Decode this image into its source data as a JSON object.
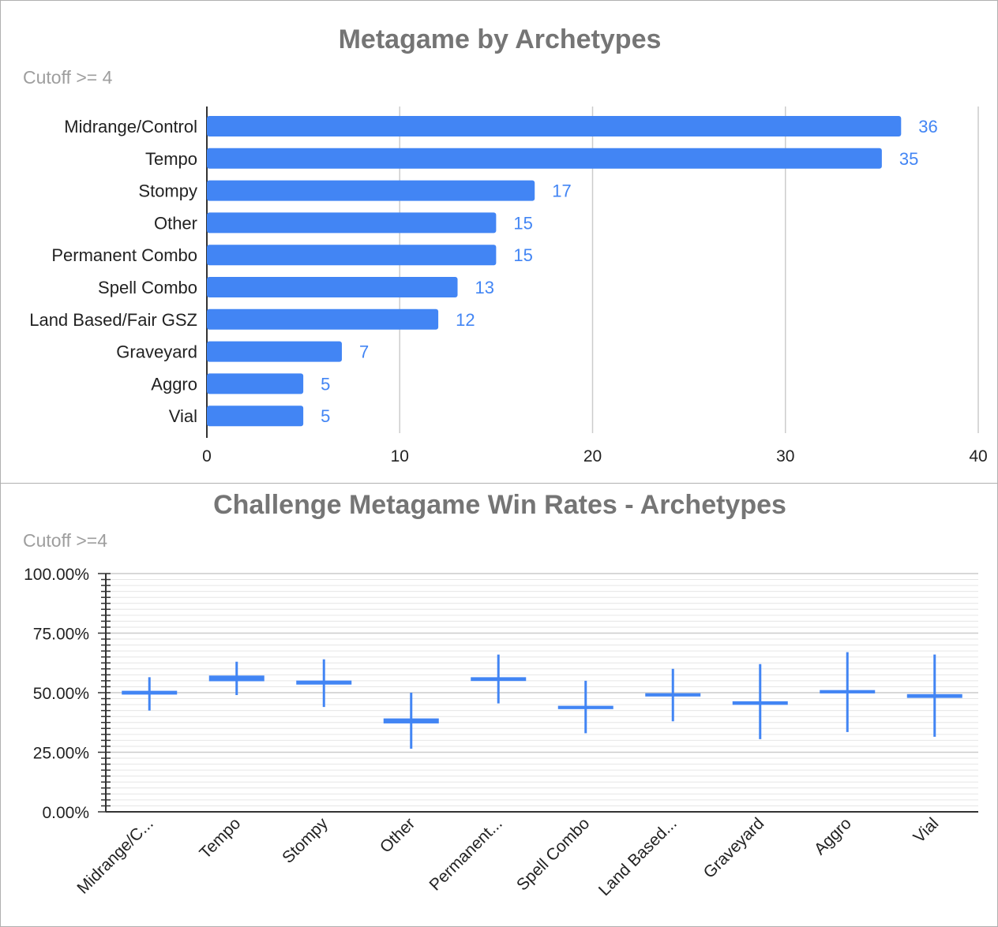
{
  "chart_data": [
    {
      "type": "bar",
      "orientation": "horizontal",
      "title": "Metagame by Archetypes",
      "subtitle": "Cutoff >= 4",
      "categories": [
        "Midrange/Control",
        "Tempo",
        "Stompy",
        "Other",
        "Permanent Combo",
        "Spell Combo",
        "Land Based/Fair GSZ",
        "Graveyard",
        "Aggro",
        "Vial"
      ],
      "values": [
        36,
        35,
        17,
        15,
        15,
        13,
        12,
        7,
        5,
        5
      ],
      "xlim": [
        0,
        40
      ],
      "xticks": [
        "0",
        "10",
        "20",
        "30",
        "40"
      ],
      "grid": true,
      "data_labels": true,
      "color": "#4285f4"
    },
    {
      "type": "candlestick",
      "title": "Challenge Metagame Win Rates - Archetypes",
      "subtitle": "Cutoff >=4",
      "categories": [
        "Midrange/C...",
        "Tempo",
        "Stompy",
        "Other",
        "Permanent...",
        "Spell Combo",
        "Land Based...",
        "Graveyard",
        "Aggro",
        "Vial"
      ],
      "low": [
        42.5,
        49,
        44,
        26.5,
        45.5,
        33,
        38,
        30.5,
        33.5,
        31.5
      ],
      "high": [
        56.5,
        63,
        64,
        50,
        66,
        55,
        60,
        62,
        67,
        66
      ],
      "open": [
        49.7,
        55.3,
        53.9,
        37.6,
        55.4,
        43.6,
        48.9,
        45.4,
        50.2,
        48.3
      ],
      "close": [
        50.3,
        56.7,
        54.6,
        38.7,
        56.0,
        44.0,
        49.3,
        45.9,
        50.6,
        48.9
      ],
      "ylim": [
        0,
        100
      ],
      "yticks": [
        "100.00%",
        "75.00%",
        "50.00%",
        "25.00%",
        "0.00%"
      ],
      "grid": true,
      "color": "#4285f4"
    }
  ]
}
